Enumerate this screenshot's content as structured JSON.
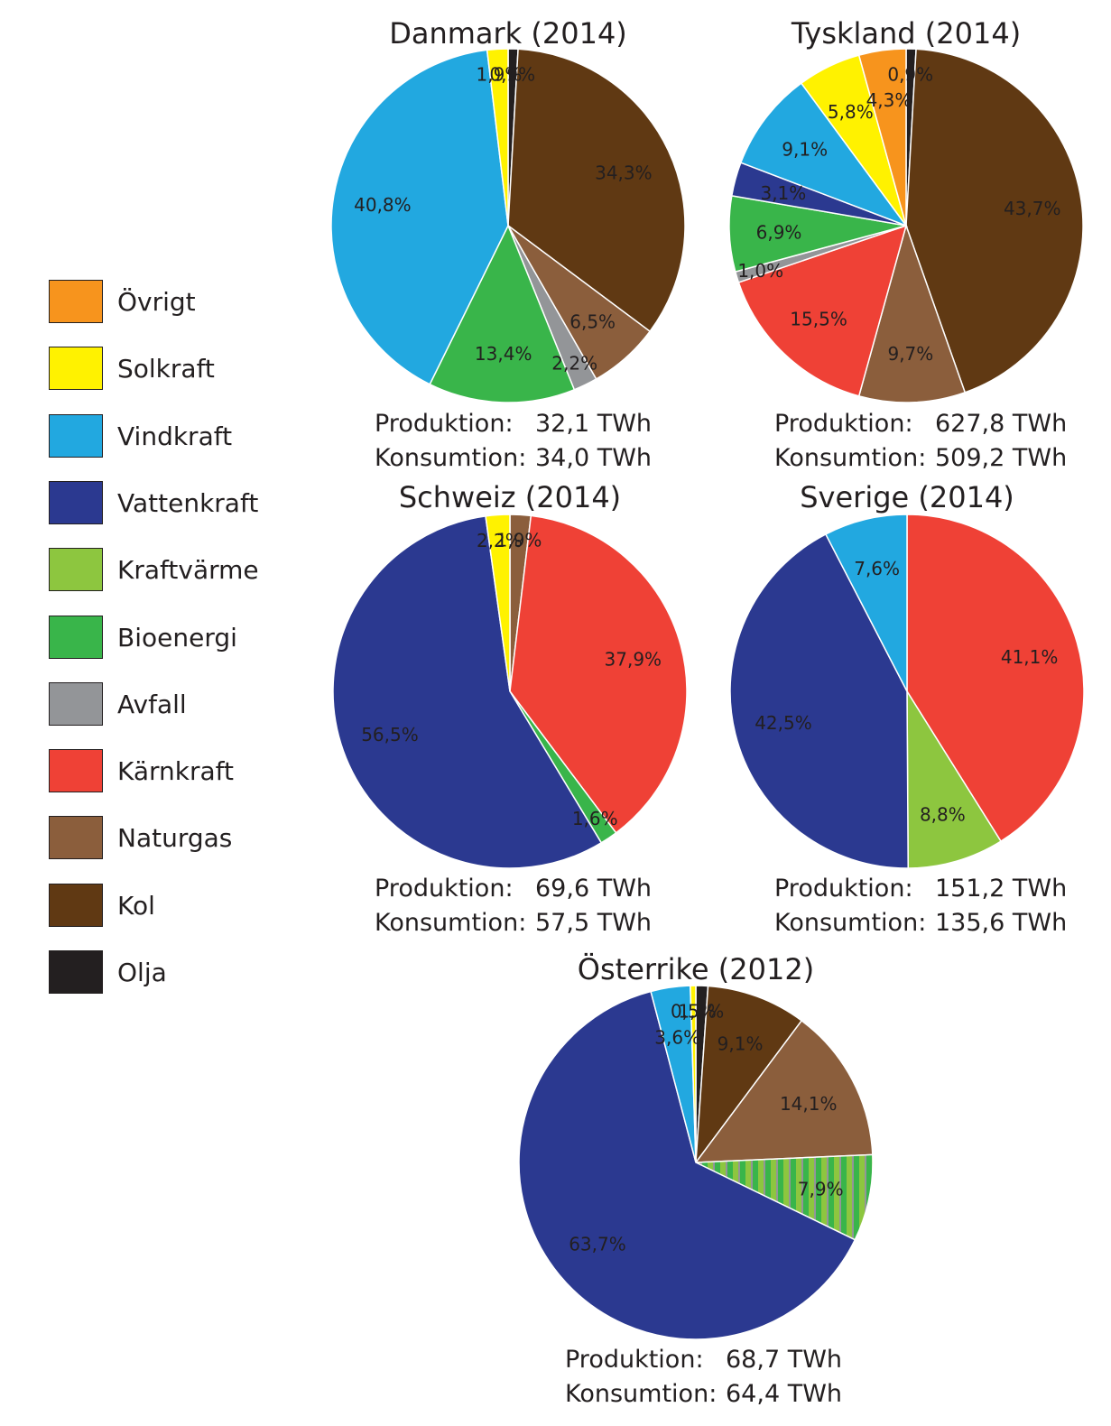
{
  "legend": [
    {
      "name": "Övrigt",
      "color": "#f7941d"
    },
    {
      "name": "Solkraft",
      "color": "#fff200"
    },
    {
      "name": "Vindkraft",
      "color": "#22a8e0"
    },
    {
      "name": "Vattenkraft",
      "color": "#2b3990"
    },
    {
      "name": "Kraftvärme",
      "color": "#8dc63f"
    },
    {
      "name": "Bioenergi",
      "color": "#39b54a"
    },
    {
      "name": "Avfall",
      "color": "#939598"
    },
    {
      "name": "Kärnkraft",
      "color": "#ef4136"
    },
    {
      "name": "Naturgas",
      "color": "#8b5e3c"
    },
    {
      "name": "Kol",
      "color": "#603913"
    },
    {
      "name": "Olja",
      "color": "#231f20"
    }
  ],
  "chart_data": [
    {
      "type": "pie",
      "title": "Danmark (2014)",
      "production_label": "Produktion:",
      "production_value": "32,1 TWh",
      "consumption_label": "Konsumtion:",
      "consumption_value": "34,0 TWh",
      "slices": [
        {
          "name": "Olja",
          "value": 0.9,
          "label": "0,9%"
        },
        {
          "name": "Kol",
          "value": 34.3,
          "label": "34,3%"
        },
        {
          "name": "Naturgas",
          "value": 6.5,
          "label": "6,5%"
        },
        {
          "name": "Avfall",
          "value": 2.2,
          "label": "2,2%"
        },
        {
          "name": "Bioenergi",
          "value": 13.4,
          "label": "13,4%"
        },
        {
          "name": "Vindkraft",
          "value": 40.8,
          "label": "40,8%"
        },
        {
          "name": "Solkraft",
          "value": 1.9,
          "label": "1,9%"
        }
      ]
    },
    {
      "type": "pie",
      "title": "Tyskland (2014)",
      "production_label": "Produktion:",
      "production_value": "627,8 TWh",
      "consumption_label": "Konsumtion:",
      "consumption_value": "509,2 TWh",
      "slices": [
        {
          "name": "Olja",
          "value": 0.9,
          "label": "0,9%"
        },
        {
          "name": "Kol",
          "value": 43.7,
          "label": "43,7%"
        },
        {
          "name": "Naturgas",
          "value": 9.7,
          "label": "9,7%"
        },
        {
          "name": "Kärnkraft",
          "value": 15.5,
          "label": "15,5%"
        },
        {
          "name": "Avfall",
          "value": 1.0,
          "label": "1,0%"
        },
        {
          "name": "Bioenergi",
          "value": 6.9,
          "label": "6,9%"
        },
        {
          "name": "Vattenkraft",
          "value": 3.1,
          "label": "3,1%"
        },
        {
          "name": "Vindkraft",
          "value": 9.1,
          "label": "9,1%"
        },
        {
          "name": "Solkraft",
          "value": 5.8,
          "label": "5,8%"
        },
        {
          "name": "Övrigt",
          "value": 4.3,
          "label": "4,3%"
        }
      ]
    },
    {
      "type": "pie",
      "title": "Schweiz (2014)",
      "production_label": "Produktion:",
      "production_value": "69,6 TWh",
      "consumption_label": "Konsumtion:",
      "consumption_value": "57,5 TWh",
      "slices": [
        {
          "name": "Naturgas",
          "value": 1.9,
          "label": "1,9%"
        },
        {
          "name": "Kärnkraft",
          "value": 37.9,
          "label": "37,9%"
        },
        {
          "name": "Bioenergi",
          "value": 1.6,
          "label": "1,6%"
        },
        {
          "name": "Vattenkraft",
          "value": 56.5,
          "label": "56,5%"
        },
        {
          "name": "Solkraft",
          "value": 2.2,
          "label": "2,2%"
        }
      ]
    },
    {
      "type": "pie",
      "title": "Sverige (2014)",
      "production_label": "Produktion:",
      "production_value": "151,2 TWh",
      "consumption_label": "Konsumtion:",
      "consumption_value": "135,6 TWh",
      "slices": [
        {
          "name": "Kärnkraft",
          "value": 41.1,
          "label": "41,1%"
        },
        {
          "name": "Kraftvärme",
          "value": 8.8,
          "label": "8,8%"
        },
        {
          "name": "Vattenkraft",
          "value": 42.5,
          "label": "42,5%"
        },
        {
          "name": "Vindkraft",
          "value": 7.6,
          "label": "7,6%"
        }
      ]
    },
    {
      "type": "pie",
      "title": "Österrike (2012)",
      "production_label": "Produktion:",
      "production_value": "68,7 TWh",
      "consumption_label": "Konsumtion:",
      "consumption_value": "64,4 TWh",
      "slices": [
        {
          "name": "Olja",
          "value": 1.1,
          "label": "1,1%"
        },
        {
          "name": "Kol",
          "value": 9.1,
          "label": "9,1%"
        },
        {
          "name": "Naturgas",
          "value": 14.1,
          "label": "14,1%"
        },
        {
          "name": "Kraftvärme/Bioenergi",
          "value": 7.9,
          "label": "7,9%",
          "striped": true
        },
        {
          "name": "Vattenkraft",
          "value": 63.7,
          "label": "63,7%"
        },
        {
          "name": "Vindkraft",
          "value": 3.6,
          "label": "3,6%"
        },
        {
          "name": "Solkraft",
          "value": 0.5,
          "label": "0,5%"
        }
      ]
    }
  ]
}
